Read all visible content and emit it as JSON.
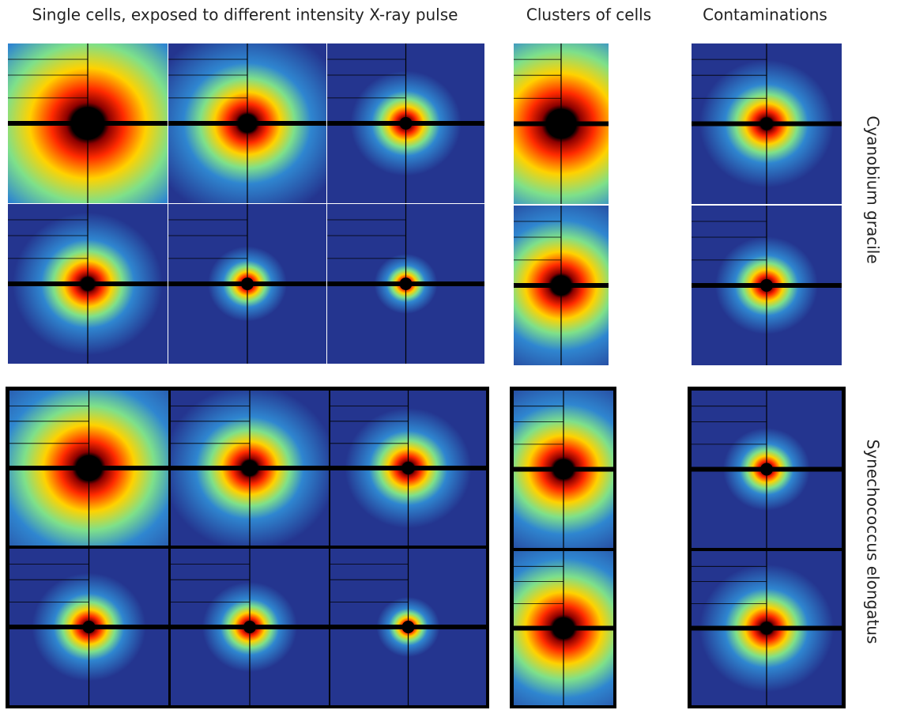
{
  "header": {
    "columns": [
      "Single cells, exposed to different intensity X-ray pulse",
      "Clusters of cells",
      "Contaminations"
    ]
  },
  "rows": [
    {
      "label": "Cyanobium gracile"
    },
    {
      "label": "Synechococcus elongatus"
    }
  ]
}
